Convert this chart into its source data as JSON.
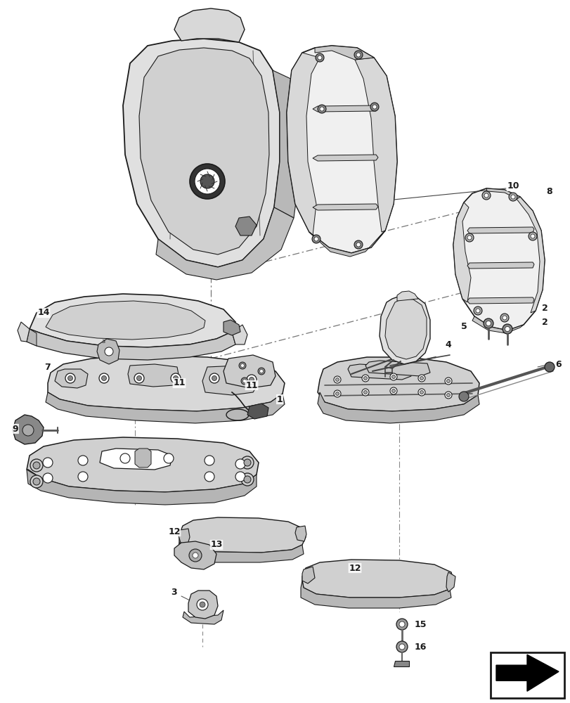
{
  "bg": "#ffffff",
  "lc": "#1a1a1a",
  "gray_light": "#e8e8e8",
  "gray_mid": "#c8c8c8",
  "gray_dark": "#aaaaaa",
  "fig_w": 8.12,
  "fig_h": 10.0,
  "dpi": 100
}
